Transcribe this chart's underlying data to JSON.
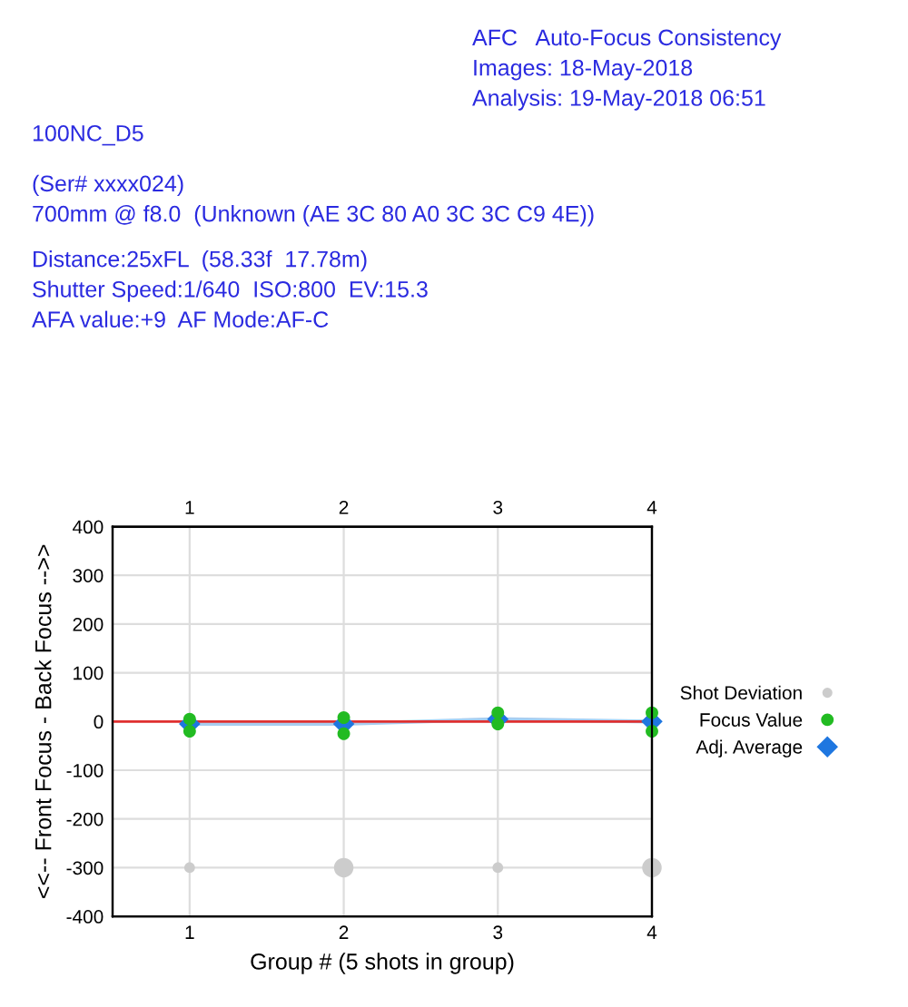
{
  "chart_data": {
    "type": "scatter",
    "title": "AFC   Auto-Focus Consistency",
    "annotations": [
      "Images: 18-May-2018",
      "Analysis: 19-May-2018 06:51",
      "100NC_D5",
      "(Ser# xxxx024)",
      "700mm @ f8.0  (Unknown (AE 3C 80 A0 3C 3C C9 4E))",
      "Distance:25xFL  (58.33f  17.78m)",
      "Shutter Speed:1/640  ISO:800  EV:15.3",
      "AFA value:+9  AF Mode:AF-C"
    ],
    "xlabel": "Group # (5 shots in group)",
    "ylabel": "<<-- Front Focus - Back Focus -->>",
    "xlim": [
      0.5,
      4
    ],
    "xticks": [
      1,
      2,
      3,
      4
    ],
    "x2lim": [
      0.5,
      4
    ],
    "x2ticks": [
      1,
      2,
      3,
      4
    ],
    "ylim": [
      -400,
      400
    ],
    "yticks": [
      -400,
      -300,
      -200,
      -100,
      0,
      100,
      200,
      300,
      400
    ],
    "series": [
      {
        "name": "Shot Deviation",
        "type": "bubble",
        "color": "#cccccc",
        "x": [
          1,
          2,
          3,
          4
        ],
        "values": [
          -300,
          -300,
          -300,
          -300
        ],
        "sizes": [
          0.3,
          1,
          0.3,
          1
        ]
      },
      {
        "name": "Focus Value",
        "color": "#22bb22",
        "marker": "circle",
        "x": [
          1,
          1,
          2,
          2,
          3,
          3,
          4,
          4
        ],
        "values": [
          5,
          -20,
          8,
          -25,
          18,
          -5,
          18,
          -20
        ]
      },
      {
        "name": "Adj. Average",
        "type": "line",
        "color": "#1f77e0",
        "marker": "diamond",
        "x": [
          1,
          2,
          3,
          4
        ],
        "values": [
          -5,
          -5,
          5,
          0
        ]
      }
    ],
    "ref_lines": [
      {
        "axis": "y",
        "value": 0,
        "color": "#e03030"
      }
    ],
    "grid": true,
    "legend": "right"
  }
}
